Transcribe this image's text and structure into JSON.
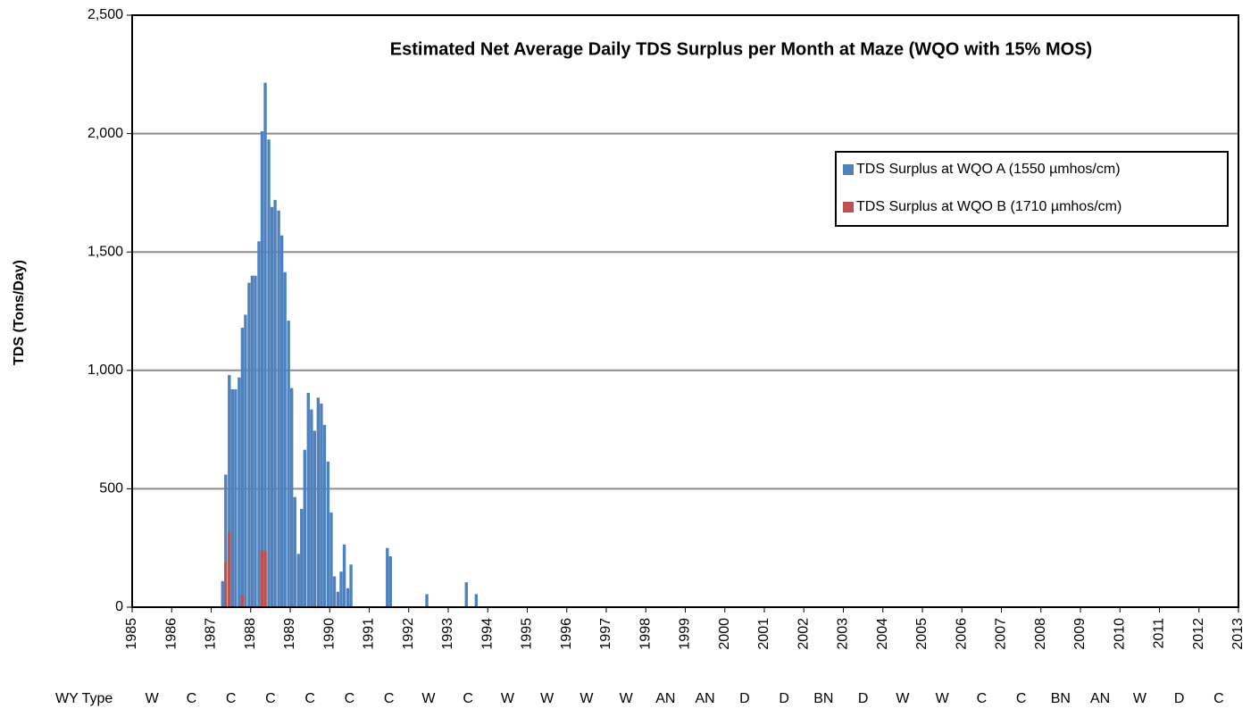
{
  "chart_data": {
    "type": "bar",
    "title": "Estimated Net Average Daily TDS Surplus per Month at Maze (WQO with 15% MOS)",
    "y_label": "TDS (Tons/Day)",
    "xlim": [
      1985,
      2013
    ],
    "xticks": [
      1985,
      1986,
      1987,
      1988,
      1989,
      1990,
      1991,
      1992,
      1993,
      1994,
      1995,
      1996,
      1997,
      1998,
      1999,
      2000,
      2001,
      2002,
      2003,
      2004,
      2005,
      2006,
      2007,
      2008,
      2009,
      2010,
      2011,
      2012,
      2013
    ],
    "ylim": [
      0,
      2500
    ],
    "yticks": [
      0,
      500,
      {
        "value": 1000,
        "label": "1,000"
      },
      {
        "value": 1500,
        "label": "1,500"
      },
      {
        "value": 2000,
        "label": "2,000"
      },
      {
        "value": 2500,
        "label": "2,500"
      }
    ],
    "grid": true,
    "legend": "upper right",
    "series": [
      {
        "name": "TDS Surplus at WQO A (1550 µmhos/cm)",
        "color": "#4f81bd",
        "x": [
          1987.25,
          1987.33,
          1987.42,
          1987.5,
          1987.58,
          1987.67,
          1987.75,
          1987.83,
          1987.92,
          1988.0,
          1988.08,
          1988.17,
          1988.25,
          1988.33,
          1988.42,
          1988.5,
          1988.58,
          1988.67,
          1988.75,
          1988.83,
          1988.92,
          1989.0,
          1989.08,
          1989.17,
          1989.25,
          1989.33,
          1989.42,
          1989.5,
          1989.58,
          1989.67,
          1989.75,
          1989.83,
          1989.92,
          1990.0,
          1990.08,
          1990.17,
          1990.25,
          1990.33,
          1990.42,
          1990.5,
          1990.58,
          1991.42,
          1991.5,
          1992.42,
          1993.42,
          1993.67
        ],
        "values": [
          110,
          560,
          980,
          920,
          920,
          970,
          1180,
          1235,
          1370,
          1400,
          1400,
          1545,
          2010,
          2215,
          1975,
          1690,
          1720,
          1675,
          1570,
          1415,
          1210,
          925,
          465,
          225,
          415,
          665,
          905,
          835,
          745,
          885,
          860,
          770,
          615,
          400,
          130,
          65,
          150,
          265,
          80,
          180,
          0,
          250,
          215,
          55,
          105,
          55
        ]
      },
      {
        "name": "TDS Surplus at WQO B (1710 µmhos/cm)",
        "color": "#c0504d",
        "x": [
          1987.33,
          1987.42,
          1987.75,
          1988.25,
          1988.33,
          1989.58
        ],
        "values": [
          190,
          320,
          50,
          240,
          235,
          8
        ]
      }
    ],
    "wy_label": "WY Type",
    "wy_types": [
      "W",
      "C",
      "C",
      "C",
      "C",
      "C",
      "C",
      "W",
      "C",
      "W",
      "W",
      "W",
      "W",
      "AN",
      "AN",
      "D",
      "D",
      "BN",
      "D",
      "W",
      "W",
      "C",
      "C",
      "BN",
      "AN",
      "W",
      "D",
      "C"
    ]
  }
}
